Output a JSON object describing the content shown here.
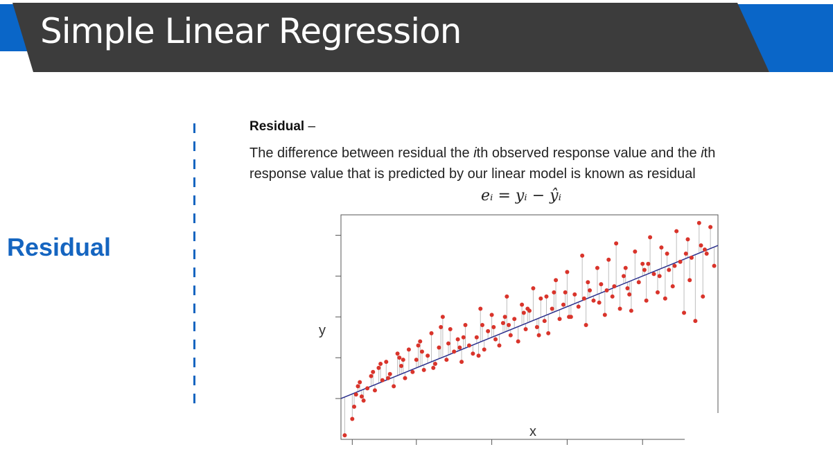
{
  "slide": {
    "title": "Simple Linear Regression",
    "side_label": "Residual",
    "heading": "Residual",
    "heading_suffix": " –",
    "paragraph_line1_a": "The difference between residual  the ",
    "paragraph_line1_i1": "i",
    "paragraph_line1_b": "th observed response value and the ",
    "paragraph_line1_i2": "i",
    "paragraph_line1_c": "th",
    "paragraph_line2": "response value that is predicted by our linear model is known as residual",
    "formula": "eᵢ = yᵢ − ŷᵢ",
    "colors": {
      "title_bar": "#3c3c3c",
      "accent_blue": "#0a66c8",
      "label_blue": "#1565c0",
      "point_red": "#d9342b",
      "line_navy": "#2a2f8c"
    }
  },
  "chart_data": {
    "type": "scatter",
    "title": "",
    "xlabel": "x",
    "ylabel": "y",
    "xlim": [
      0,
      10
    ],
    "ylim": [
      0,
      11
    ],
    "grid": false,
    "fit_line": {
      "intercept": 2.0,
      "slope": 0.75
    },
    "residual_lines": true,
    "x": [
      0.1,
      0.3,
      0.35,
      0.4,
      0.5,
      0.6,
      0.7,
      0.8,
      0.9,
      1.0,
      1.1,
      1.2,
      1.3,
      1.4,
      1.5,
      1.6,
      1.7,
      1.8,
      1.9,
      2.0,
      2.1,
      2.2,
      2.3,
      2.4,
      2.5,
      2.6,
      2.7,
      2.8,
      2.9,
      3.0,
      3.1,
      3.2,
      3.3,
      3.4,
      3.5,
      3.6,
      3.7,
      3.8,
      3.9,
      4.0,
      4.1,
      4.2,
      4.3,
      4.4,
      4.5,
      4.6,
      4.7,
      4.8,
      4.9,
      5.0,
      5.1,
      5.2,
      5.3,
      5.4,
      5.5,
      5.6,
      5.7,
      5.8,
      5.9,
      6.0,
      6.1,
      6.2,
      6.3,
      6.4,
      6.5,
      6.6,
      6.7,
      6.8,
      6.9,
      7.0,
      7.1,
      7.2,
      7.3,
      7.4,
      7.5,
      7.6,
      7.7,
      7.8,
      7.9,
      8.0,
      8.1,
      8.2,
      8.3,
      8.4,
      8.5,
      8.6,
      8.7,
      8.8,
      8.9,
      9.0,
      9.1,
      9.2,
      9.3,
      9.4,
      9.5,
      9.6,
      9.7,
      9.8,
      9.9,
      0.45,
      0.85,
      1.25,
      1.65,
      2.05,
      2.45,
      2.85,
      3.25,
      3.65,
      4.05,
      4.45,
      4.85,
      5.25,
      5.65,
      6.05,
      6.45,
      6.85,
      7.25,
      7.65,
      8.05,
      8.45,
      8.85,
      9.25,
      9.65,
      0.55,
      1.05,
      1.55,
      2.15,
      2.65,
      3.15,
      3.75,
      4.35,
      4.95,
      5.45,
      5.95,
      6.55,
      7.05,
      7.55,
      8.15,
      8.65,
      9.15,
      9.55
    ],
    "y": [
      0.2,
      1.0,
      1.6,
      2.2,
      2.8,
      1.9,
      2.5,
      3.1,
      2.4,
      3.5,
      2.9,
      3.8,
      3.2,
      2.6,
      4.2,
      3.6,
      3.0,
      4.4,
      3.3,
      3.9,
      4.8,
      3.4,
      4.1,
      5.2,
      3.7,
      4.5,
      6.0,
      3.9,
      5.4,
      4.3,
      4.9,
      3.8,
      5.6,
      4.6,
      4.2,
      5.0,
      6.4,
      4.4,
      5.3,
      6.1,
      4.9,
      4.6,
      5.7,
      7.0,
      5.1,
      5.9,
      4.8,
      6.6,
      5.4,
      6.3,
      7.4,
      5.5,
      6.9,
      5.8,
      5.2,
      6.4,
      7.8,
      5.9,
      6.6,
      8.2,
      6.0,
      7.1,
      6.5,
      9.0,
      5.6,
      7.3,
      6.8,
      8.4,
      7.6,
      6.1,
      8.8,
      7.0,
      9.6,
      6.4,
      8.0,
      7.4,
      6.3,
      9.2,
      7.7,
      8.6,
      6.8,
      9.9,
      8.1,
      7.2,
      9.4,
      6.9,
      8.3,
      7.5,
      10.2,
      8.7,
      6.2,
      9.8,
      8.9,
      5.8,
      10.6,
      7.0,
      9.1,
      10.4,
      8.5,
      2.6,
      3.3,
      3.0,
      3.9,
      4.6,
      3.5,
      4.7,
      5.0,
      4.1,
      5.5,
      5.6,
      6.2,
      5.1,
      7.2,
      6.0,
      6.9,
      6.7,
      7.5,
      7.1,
      8.3,
      8.0,
      8.5,
      7.8,
      9.3,
      2.1,
      3.7,
      4.0,
      4.3,
      5.5,
      4.5,
      5.6,
      6.0,
      6.4,
      7.0,
      7.2,
      7.7,
      7.3,
      8.4,
      8.6,
      9.1,
      9.1,
      9.5
    ]
  }
}
